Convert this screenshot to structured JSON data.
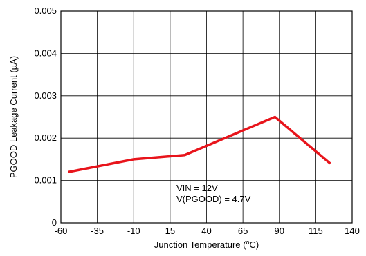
{
  "chart_data": {
    "type": "line",
    "xlabel_main": "Junction Temperature (",
    "xlabel_sup": "o",
    "xlabel_end": "C)",
    "ylabel": "PGOOD Leakage Current (µA)",
    "xlim": [
      -60,
      140
    ],
    "ylim": [
      0,
      0.005
    ],
    "x_ticks": [
      -60,
      -35,
      -10,
      15,
      40,
      65,
      90,
      115,
      140
    ],
    "x_tick_labels": [
      "-60",
      "-35",
      "-10",
      "15",
      "40",
      "65",
      "90",
      "115",
      "140"
    ],
    "y_ticks": [
      0,
      0.001,
      0.002,
      0.003,
      0.004,
      0.005
    ],
    "y_tick_labels": [
      "0",
      "0.001",
      "0.002",
      "0.003",
      "0.004",
      "0.005"
    ],
    "grid": true,
    "series": [
      {
        "color": "#e8141b",
        "x": [
          -55,
          -40,
          -10,
          25,
          87,
          125
        ],
        "y": [
          0.0012,
          0.0013,
          0.0015,
          0.0016,
          0.0025,
          0.0014
        ]
      }
    ],
    "annotations": [
      "VIN = 12V",
      "V(PGOOD) = 4.7V"
    ]
  }
}
